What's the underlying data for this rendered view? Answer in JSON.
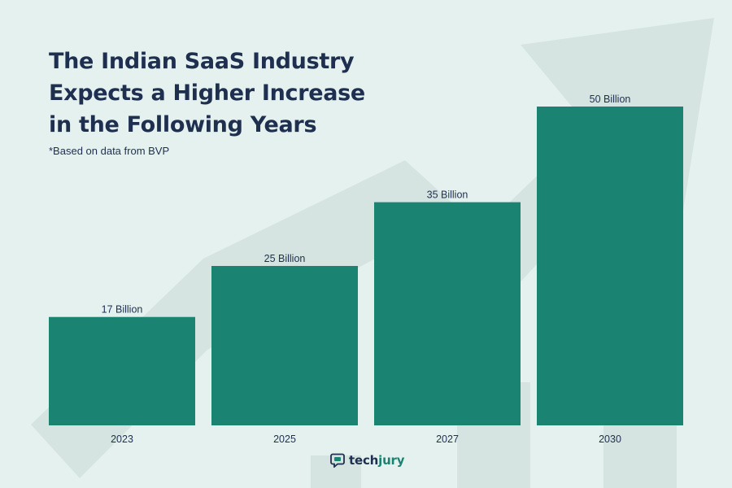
{
  "header": {
    "title": "The Indian SaaS Industry Expects a Higher Increase in the Following Years",
    "subtitle": "*Based on data from BVP"
  },
  "brand": {
    "name_part1": "tech",
    "name_part2": "jury",
    "icon": "chat-bubble-icon"
  },
  "colors": {
    "background": "#e5f1ee",
    "bar": "#1a8372",
    "text": "#1e2f4f",
    "decor": "#d6e4e1"
  },
  "chart_data": {
    "type": "bar",
    "title": "The Indian SaaS Industry Expects a Higher Increase in the Following Years",
    "subtitle": "*Based on data from BVP",
    "categories": [
      "2023",
      "2025",
      "2027",
      "2030"
    ],
    "values": [
      17,
      25,
      35,
      50
    ],
    "data_labels": [
      "17 Billion",
      "25 Billion",
      "35 Billion",
      "50 Billion"
    ],
    "unit": "Billion",
    "xlabel": "",
    "ylabel": "",
    "ylim": [
      0,
      50
    ],
    "grid": false,
    "legend": "none"
  }
}
